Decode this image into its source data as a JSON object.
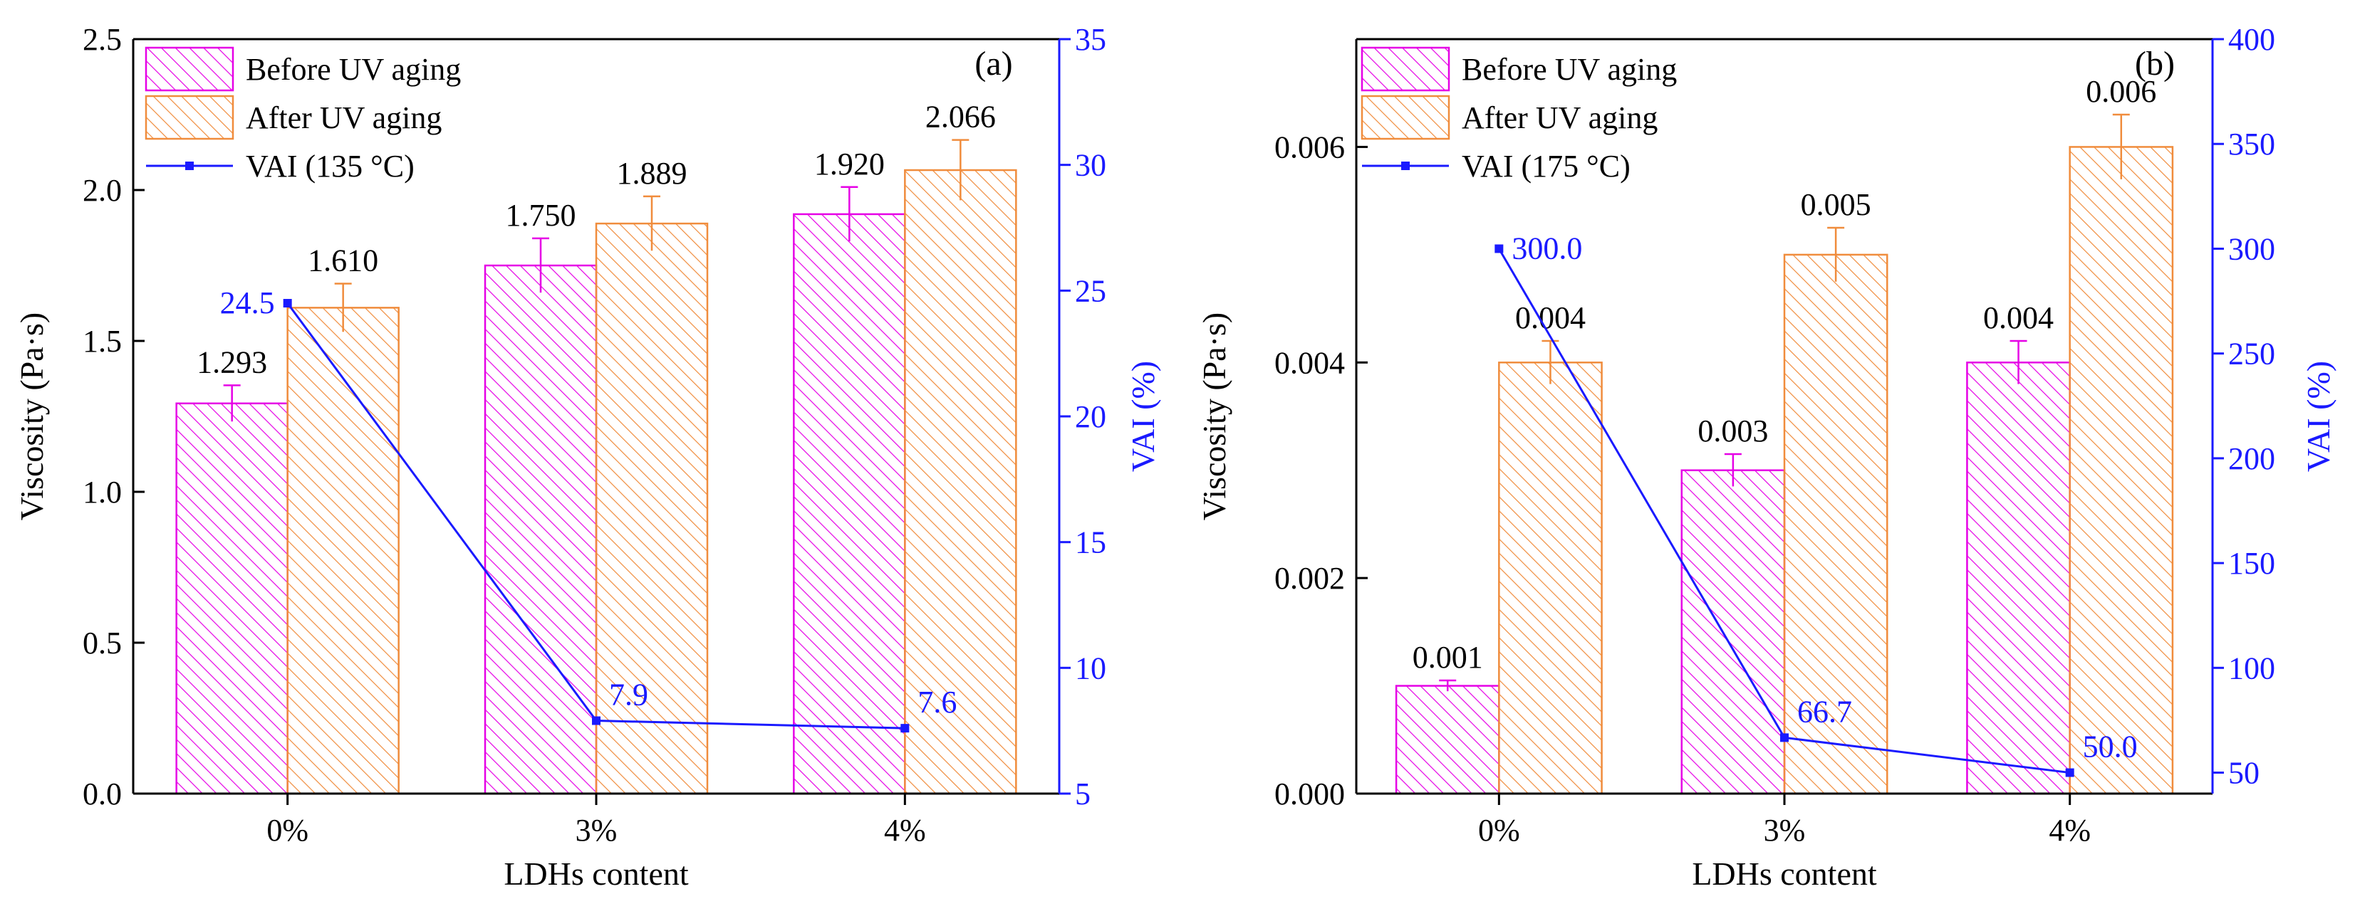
{
  "colors": {
    "before": "#e600e6",
    "after": "#f08c3c",
    "line": "#1a1aff",
    "axis": "#000000"
  },
  "chart_data": [
    {
      "type": "bar",
      "panel_label": "(a)",
      "categories": [
        "0%",
        "3%",
        "4%"
      ],
      "xlabel": "LDHs content",
      "ylabel": "Viscosity  (Pa·s)",
      "y2label": "VAI (%)",
      "ylim": [
        0,
        2.5
      ],
      "y2lim": [
        5,
        35
      ],
      "yticks": [
        0.0,
        0.5,
        1.0,
        1.5,
        2.0,
        2.5
      ],
      "ytick_labels": [
        "0.0",
        "0.5",
        "1.0",
        "1.5",
        "2.0",
        "2.5"
      ],
      "y2ticks": [
        5,
        10,
        15,
        20,
        25,
        30,
        35
      ],
      "y2tick_labels": [
        "5",
        "10",
        "15",
        "20",
        "25",
        "30",
        "35"
      ],
      "legend": [
        "Before UV aging",
        "After UV aging",
        "VAI (135 °C)"
      ],
      "legend_position": "top-left",
      "series": [
        {
          "name": "Before UV aging",
          "values": [
            1.293,
            1.75,
            1.92
          ],
          "labels": [
            "1.293",
            "1.750",
            "1.920"
          ],
          "errors": [
            0.06,
            0.09,
            0.09
          ]
        },
        {
          "name": "After UV aging",
          "values": [
            1.61,
            1.889,
            2.066
          ],
          "labels": [
            "1.610",
            "1.889",
            "2.066"
          ],
          "errors": [
            0.08,
            0.09,
            0.1
          ]
        },
        {
          "name": "VAI (135 °C)",
          "axis": "right",
          "values": [
            24.5,
            7.9,
            7.6
          ],
          "labels": [
            "24.5",
            "7.9",
            "7.6"
          ]
        }
      ]
    },
    {
      "type": "bar",
      "panel_label": "(b)",
      "categories": [
        "0%",
        "3%",
        "4%"
      ],
      "xlabel": "LDHs content",
      "ylabel": "Viscosity  (Pa·s)",
      "y2label": "VAI (%)",
      "ylim": [
        0,
        0.007
      ],
      "y2lim": [
        40,
        400
      ],
      "yticks": [
        0.0,
        0.002,
        0.004,
        0.006
      ],
      "ytick_labels": [
        "0.000",
        "0.002",
        "0.004",
        "0.006"
      ],
      "y2ticks": [
        50,
        100,
        150,
        200,
        250,
        300,
        350,
        400
      ],
      "y2tick_labels": [
        "50",
        "100",
        "150",
        "200",
        "250",
        "300",
        "350",
        "400"
      ],
      "legend": [
        "Before UV aging",
        "After UV aging",
        "VAI (175 °C)"
      ],
      "legend_position": "top-left",
      "series": [
        {
          "name": "Before UV aging",
          "values": [
            0.001,
            0.003,
            0.004
          ],
          "labels": [
            "0.001",
            "0.003",
            "0.004"
          ],
          "errors": [
            5e-05,
            0.00015,
            0.0002
          ]
        },
        {
          "name": "After UV aging",
          "values": [
            0.004,
            0.005,
            0.006
          ],
          "labels": [
            "0.004",
            "0.005",
            "0.006"
          ],
          "errors": [
            0.0002,
            0.00025,
            0.0003
          ]
        },
        {
          "name": "VAI (175 °C)",
          "axis": "right",
          "values": [
            300.0,
            66.7,
            50.0
          ],
          "labels": [
            "300.0",
            "66.7",
            "50.0"
          ]
        }
      ]
    }
  ]
}
